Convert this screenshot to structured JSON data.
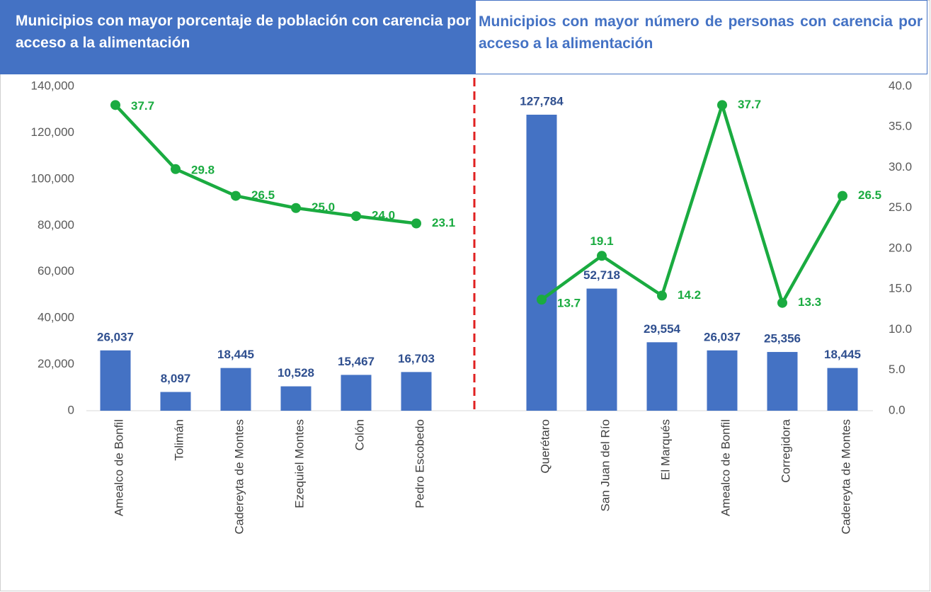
{
  "chart_data": [
    {
      "type": "bar-line",
      "title": "Municipios con mayor porcentaje de población con carencia por acceso a la alimentación",
      "categories": [
        "Amealco de Bonfil",
        "Tolimán",
        "Cadereyta de Montes",
        "Ezequiel Montes",
        "Colón",
        "Pedro Escobedo"
      ],
      "series": [
        {
          "type": "bar",
          "axis": "y",
          "color": "#4472c4",
          "values": [
            26037,
            8097,
            18445,
            10528,
            15467,
            16703
          ],
          "value_labels": [
            "26,037",
            "8,097",
            "18,445",
            "10,528",
            "15,467",
            "16,703"
          ]
        },
        {
          "type": "line",
          "axis": "y2",
          "color": "#1aab40",
          "values": [
            37.7,
            29.8,
            26.5,
            25.0,
            24.0,
            23.1
          ],
          "value_labels": [
            "37.7",
            "29.8",
            "26.5",
            "25.0",
            "24.0",
            "23.1"
          ]
        }
      ],
      "ylim": [
        0,
        140000
      ],
      "yticks": [
        0,
        {
          "value": 20000,
          "label": "20,000"
        },
        {
          "value": 40000,
          "label": "40,000"
        },
        {
          "value": 60000,
          "label": "60,000"
        },
        {
          "value": 80000,
          "label": "80,000"
        },
        {
          "value": 100000,
          "label": "100,000"
        },
        {
          "value": 120000,
          "label": "120,000"
        },
        {
          "value": 140000,
          "label": "140,000"
        }
      ],
      "y2lim": [
        0,
        40
      ]
    },
    {
      "type": "bar-line",
      "title": "Municipios con mayor número de personas con carencia por acceso a la alimentación",
      "categories": [
        "Querétaro",
        "San Juan del Río",
        "El Marqués",
        "Amealco de Bonfil",
        "Corregidora",
        "Cadereyta de Montes"
      ],
      "series": [
        {
          "type": "bar",
          "axis": "y",
          "color": "#4472c4",
          "values": [
            127784,
            52718,
            29554,
            26037,
            25356,
            18445
          ],
          "value_labels": [
            "127,784",
            "52,718",
            "29,554",
            "26,037",
            "25,356",
            "18,445"
          ]
        },
        {
          "type": "line",
          "axis": "y2",
          "color": "#1aab40",
          "values": [
            13.7,
            19.1,
            14.2,
            37.7,
            13.3,
            26.5
          ],
          "value_labels": [
            "13.7",
            "19.1",
            "14.2",
            "37.7",
            "13.3",
            "26.5"
          ]
        }
      ],
      "ylim": [
        0,
        140000
      ],
      "y2lim": [
        0,
        40
      ],
      "y2ticks": [
        {
          "value": 0,
          "label": "0.0"
        },
        {
          "value": 5,
          "label": "5.0"
        },
        {
          "value": 10,
          "label": "10.0"
        },
        {
          "value": 15,
          "label": "15.0"
        },
        {
          "value": 20,
          "label": "20.0"
        },
        {
          "value": 25,
          "label": "25.0"
        },
        {
          "value": 30,
          "label": "30.0"
        },
        {
          "value": 35,
          "label": "35.0"
        },
        {
          "value": 40,
          "label": "40.0"
        }
      ]
    }
  ]
}
